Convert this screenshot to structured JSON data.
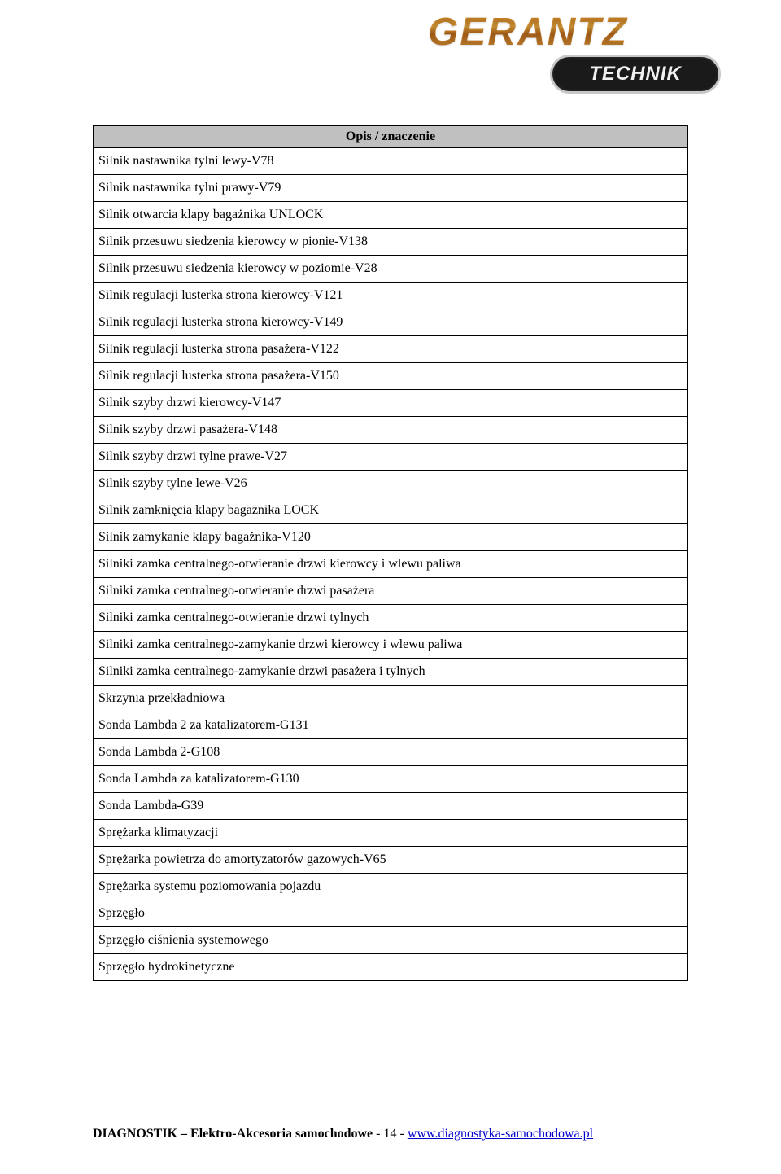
{
  "logo": {
    "brand": "GERANTZ",
    "subbrand": "TECHNIK"
  },
  "table": {
    "header": "Opis / znaczenie",
    "rows": [
      "Silnik nastawnika tylni lewy-V78",
      "Silnik nastawnika tylni prawy-V79",
      "Silnik otwarcia klapy bagażnika UNLOCK",
      "Silnik przesuwu siedzenia kierowcy w pionie-V138",
      "Silnik przesuwu siedzenia kierowcy w poziomie-V28",
      "Silnik regulacji lusterka strona kierowcy-V121",
      "Silnik regulacji lusterka strona kierowcy-V149",
      "Silnik regulacji lusterka strona pasażera-V122",
      "Silnik regulacji lusterka strona pasażera-V150",
      "Silnik szyby drzwi kierowcy-V147",
      "Silnik szyby drzwi pasażera-V148",
      "Silnik szyby drzwi tylne prawe-V27",
      "Silnik szyby tylne lewe-V26",
      "Silnik zamknięcia klapy bagażnika LOCK",
      "Silnik zamykanie klapy bagażnika-V120",
      "Silniki zamka centralnego-otwieranie drzwi kierowcy i wlewu paliwa",
      "Silniki zamka centralnego-otwieranie drzwi pasażera",
      "Silniki zamka centralnego-otwieranie drzwi tylnych",
      "Silniki zamka centralnego-zamykanie drzwi kierowcy i wlewu paliwa",
      "Silniki zamka centralnego-zamykanie drzwi pasażera i tylnych",
      "Skrzynia przekładniowa",
      "Sonda Lambda 2 za katalizatorem-G131",
      "Sonda Lambda 2-G108",
      "Sonda Lambda za katalizatorem-G130",
      "Sonda Lambda-G39",
      "Sprężarka klimatyzacji",
      "Sprężarka powietrza do amortyzatorów gazowych-V65",
      "Sprężarka systemu poziomowania pojazdu",
      "Sprzęgło",
      "Sprzęgło ciśnienia systemowego",
      "Sprzęgło hydrokinetyczne"
    ]
  },
  "footer": {
    "company": "DIAGNOSTIK – Elektro-Akcesoria samochodowe",
    "pagepart": "  - 14 -  ",
    "url": "www.diagnostyka-samochodowa.pl"
  }
}
